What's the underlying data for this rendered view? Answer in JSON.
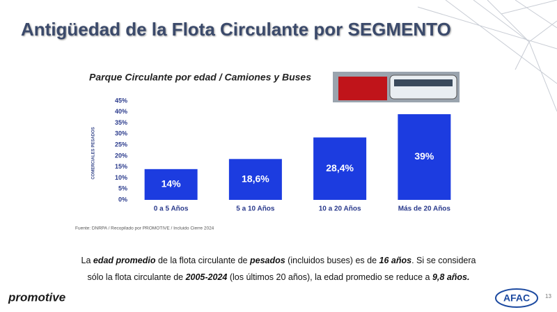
{
  "slide_title": "Antigüedad de la Flota Circulante por SEGMENTO",
  "chart_data": {
    "type": "bar",
    "title": "Parque Circulante por edad / Camiones y Buses",
    "y_label": "COMERCIALES PESADOS",
    "categories": [
      "0 a 5 Años",
      "5 a 10 Años",
      "10 a 20 Años",
      "Más de 20 Años"
    ],
    "values": [
      14,
      18.6,
      28.4,
      39
    ],
    "value_labels": [
      "14%",
      "18,6%",
      "28,4%",
      "39%"
    ],
    "color": "#1c3ce0",
    "ylim": [
      0,
      45
    ],
    "yticks": [
      {
        "value": 0,
        "label": "0%"
      },
      {
        "value": 5,
        "label": "5%"
      },
      {
        "value": 10,
        "label": "10%"
      },
      {
        "value": 15,
        "label": "15%"
      },
      {
        "value": 20,
        "label": "20%"
      },
      {
        "value": 25,
        "label": "25%"
      },
      {
        "value": 30,
        "label": "30%"
      },
      {
        "value": 35,
        "label": "35%"
      },
      {
        "value": 40,
        "label": "40%"
      },
      {
        "value": 45,
        "label": "45%"
      }
    ],
    "source": "Fuente: DNRPA / Recopilado por PROMOTIVE / Incluido Cierre 2024"
  },
  "note": [
    "La ",
    "edad promedio",
    " de la flota circulante de ",
    "pesados",
    " (incluidos buses) es de ",
    "16 años",
    ". Si se considera",
    "sólo la flota circulante de ",
    "2005-2024",
    " (los últimos 20 años), la edad promedio se reduce a ",
    "9,8 años."
  ],
  "footer": {
    "brand": "promotive",
    "logo": "AFAC",
    "page": "13"
  }
}
